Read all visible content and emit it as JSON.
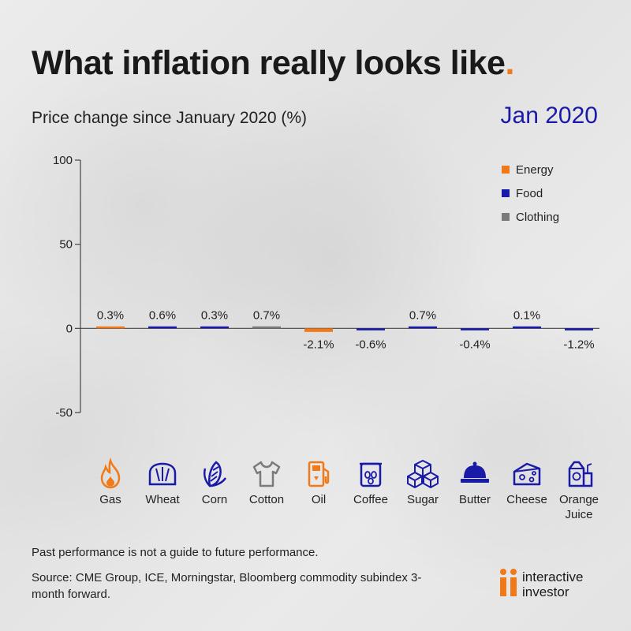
{
  "title": "What inflation really looks like",
  "title_dot": ".",
  "subtitle": "Price change since January 2020 (%)",
  "date_label": "Jan 2020",
  "footnote": "Past performance is not a guide to future performance.",
  "source": "Source: CME Group, ICE, Morningstar, Bloomberg commodity subindex 3-month forward.",
  "brand": {
    "line1": "interactive",
    "line2": "investor"
  },
  "colors": {
    "Energy": "#f07a1a",
    "Food": "#1a1aa8",
    "Clothing": "#7a7a7a",
    "axis": "#444444",
    "text": "#222222"
  },
  "icons": [
    {
      "label": "Gas",
      "icon": "flame-icon",
      "category": "Energy"
    },
    {
      "label": "Wheat",
      "icon": "bread-icon",
      "category": "Food"
    },
    {
      "label": "Corn",
      "icon": "corn-icon",
      "category": "Food"
    },
    {
      "label": "Cotton",
      "icon": "tshirt-icon",
      "category": "Clothing"
    },
    {
      "label": "Oil",
      "icon": "fuel-pump-icon",
      "category": "Energy"
    },
    {
      "label": "Coffee",
      "icon": "coffee-icon",
      "category": "Food"
    },
    {
      "label": "Sugar",
      "icon": "sugar-cubes-icon",
      "category": "Food"
    },
    {
      "label": "Butter",
      "icon": "butter-dish-icon",
      "category": "Food"
    },
    {
      "label": "Cheese",
      "icon": "cheese-icon",
      "category": "Food"
    },
    {
      "label": "Orange Juice",
      "icon": "juice-carton-icon",
      "category": "Food"
    }
  ],
  "chart_data": {
    "type": "bar",
    "title": "Price change since January 2020 (%)",
    "xlabel": "",
    "ylabel": "",
    "ylim": [
      -50,
      100
    ],
    "yticks": [
      100,
      50,
      0,
      -50
    ],
    "legend_position": "top-right",
    "legend": [
      "Energy",
      "Food",
      "Clothing"
    ],
    "categories": [
      "Gas",
      "Wheat",
      "Corn",
      "Cotton",
      "Oil",
      "Coffee",
      "Sugar",
      "Butter",
      "Cheese",
      "Orange Juice"
    ],
    "bar_categories": [
      "Energy",
      "Food",
      "Food",
      "Clothing",
      "Energy",
      "Food",
      "Food",
      "Food",
      "Food",
      "Food"
    ],
    "values": [
      0.3,
      0.6,
      0.3,
      0.7,
      -2.1,
      -0.6,
      0.7,
      -0.4,
      0.1,
      -1.2
    ],
    "value_labels": [
      "0.3%",
      "0.6%",
      "0.3%",
      "0.7%",
      "-2.1%",
      "-0.6%",
      "0.7%",
      "-0.4%",
      "0.1%",
      "-1.2%"
    ]
  }
}
